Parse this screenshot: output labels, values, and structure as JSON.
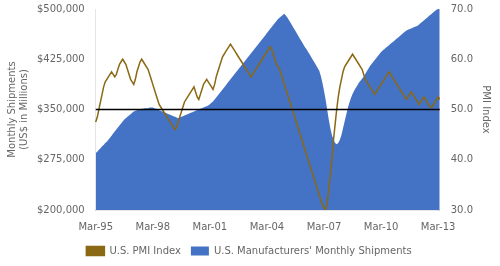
{
  "chart_data": {
    "type": "line",
    "y_label": "Monthly Shipments\n(US$ in Millions)",
    "y2_label": "PMI Index",
    "ylim": [
      200000,
      500000
    ],
    "yticks": [
      {
        "value": 200000,
        "label": "$200,000"
      },
      {
        "value": 275000,
        "label": "$275,000"
      },
      {
        "value": 350000,
        "label": "$350,000"
      },
      {
        "value": 425000,
        "label": "$425,000"
      },
      {
        "value": 500000,
        "label": "$500,000"
      }
    ],
    "y2lim": [
      30.0,
      70.0
    ],
    "y2ticks": [
      {
        "value": 30,
        "label": "30.0"
      },
      {
        "value": 40,
        "label": "40.0"
      },
      {
        "value": 50,
        "label": "50.0"
      },
      {
        "value": 60,
        "label": "60.0"
      },
      {
        "value": 70,
        "label": "70.0"
      }
    ],
    "grid": false,
    "legend": "bottom",
    "reference_lines": [
      {
        "value": 350000,
        "color": "#000000"
      }
    ],
    "categories": [
      "Mar-95",
      null,
      null,
      null,
      null,
      null,
      null,
      null,
      null,
      null,
      null,
      null,
      null,
      null,
      null,
      null,
      null,
      null,
      null,
      null,
      null,
      null,
      null,
      null,
      null,
      null,
      null,
      null,
      null,
      null,
      null,
      null,
      null,
      null,
      null,
      null,
      "Mar-98",
      null,
      null,
      null,
      null,
      null,
      null,
      null,
      null,
      null,
      null,
      null,
      null,
      null,
      null,
      null,
      null,
      null,
      null,
      null,
      null,
      null,
      null,
      null,
      null,
      null,
      null,
      null,
      null,
      null,
      null,
      null,
      null,
      null,
      null,
      null,
      "Mar-01",
      null,
      null,
      null,
      null,
      null,
      null,
      null,
      null,
      null,
      null,
      null,
      null,
      null,
      null,
      null,
      null,
      null,
      null,
      null,
      null,
      null,
      null,
      null,
      null,
      null,
      null,
      null,
      null,
      null,
      null,
      null,
      null,
      null,
      null,
      null,
      "Mar-04",
      null,
      null,
      null,
      null,
      null,
      null,
      null,
      null,
      null,
      null,
      null,
      null,
      null,
      null,
      null,
      null,
      null,
      null,
      null,
      null,
      null,
      null,
      null,
      null,
      null,
      null,
      null,
      null,
      null,
      null,
      null,
      null,
      null,
      null,
      null,
      "Mar-07",
      null,
      null,
      null,
      null,
      null,
      null,
      null,
      null,
      null,
      null,
      null,
      null,
      null,
      null,
      null,
      null,
      null,
      null,
      null,
      null,
      null,
      null,
      null,
      null,
      null,
      null,
      null,
      null,
      null,
      null,
      null,
      null,
      null,
      null,
      null,
      "Mar-10",
      null,
      null,
      null,
      null,
      null,
      null,
      null,
      null,
      null,
      null,
      null,
      null,
      null,
      null,
      null,
      null,
      null,
      null,
      null,
      null,
      null,
      null,
      null,
      null,
      null,
      null,
      null,
      null,
      null,
      null,
      null,
      null,
      null,
      null,
      null,
      "Mar-13",
      null
    ],
    "series": [
      {
        "name": "U.S. Manufacturers' Monthly Shipments",
        "type": "area",
        "color": "#4472C4",
        "values": [
          285000,
          287000,
          290000,
          292000,
          295000,
          297000,
          300000,
          302000,
          305000,
          308000,
          311000,
          314000,
          317000,
          320000,
          323000,
          326000,
          329000,
          332000,
          335000,
          337000,
          339000,
          341000,
          343000,
          345000,
          347000,
          348000,
          349000,
          350000,
          350000,
          351000,
          351000,
          352000,
          352000,
          352000,
          353000,
          353000,
          353000,
          352000,
          351000,
          350000,
          349000,
          348000,
          347000,
          346000,
          345000,
          344000,
          343000,
          342000,
          341000,
          340000,
          339000,
          338000,
          337000,
          338000,
          339000,
          340000,
          341000,
          342000,
          343000,
          344000,
          345000,
          346000,
          347000,
          348000,
          349000,
          350000,
          351000,
          352000,
          353000,
          354000,
          355000,
          356000,
          358000,
          360000,
          362000,
          365000,
          368000,
          371000,
          374000,
          377000,
          380000,
          383000,
          386000,
          389000,
          392000,
          395000,
          398000,
          401000,
          404000,
          407000,
          410000,
          413000,
          416000,
          419000,
          422000,
          425000,
          428000,
          431000,
          434000,
          437000,
          440000,
          443000,
          446000,
          449000,
          452000,
          455000,
          458000,
          461000,
          464000,
          467000,
          470000,
          473000,
          476000,
          479000,
          482000,
          485000,
          487000,
          489000,
          491000,
          493000,
          490000,
          487000,
          483000,
          479000,
          475000,
          471000,
          467000,
          463000,
          459000,
          455000,
          451000,
          447000,
          443000,
          440000,
          436000,
          432000,
          428000,
          424000,
          420000,
          416000,
          412000,
          408000,
          400000,
          390000,
          378000,
          365000,
          350000,
          335000,
          322000,
          312000,
          305000,
          300000,
          298000,
          300000,
          305000,
          312000,
          322000,
          332000,
          342000,
          352000,
          360000,
          367000,
          373000,
          378000,
          382000,
          386000,
          390000,
          393000,
          396000,
          399000,
          403000,
          407000,
          411000,
          415000,
          418000,
          421000,
          424000,
          427000,
          430000,
          433000,
          436000,
          438000,
          440000,
          442000,
          444000,
          446000,
          448000,
          450000,
          452000,
          454000,
          456000,
          458000,
          460000,
          462000,
          464000,
          466000,
          468000,
          469000,
          470000,
          471000,
          472000,
          473000,
          474000,
          475000,
          477000,
          479000,
          481000,
          483000,
          485000,
          487000,
          489000,
          491000,
          493000,
          495000,
          497000,
          499000,
          500000,
          500000
        ]
      },
      {
        "name": "U.S. PMI Index",
        "type": "line",
        "color": "#8B6914",
        "axis": "y2",
        "values": [
          47.5,
          48.5,
          50.0,
          51.5,
          53.0,
          54.5,
          55.5,
          56.0,
          56.5,
          57.0,
          57.5,
          57.0,
          56.5,
          57.0,
          58.0,
          59.0,
          59.5,
          60.0,
          59.5,
          59.0,
          58.0,
          57.0,
          56.0,
          55.5,
          55.0,
          56.0,
          57.5,
          58.5,
          59.5,
          60.0,
          59.5,
          59.0,
          58.5,
          58.0,
          57.0,
          56.0,
          55.0,
          54.0,
          53.0,
          52.0,
          51.0,
          50.5,
          50.0,
          49.5,
          49.0,
          48.5,
          48.0,
          47.5,
          47.0,
          46.5,
          46.0,
          46.5,
          47.5,
          48.5,
          49.5,
          50.5,
          51.5,
          52.0,
          52.5,
          53.0,
          53.5,
          54.0,
          54.5,
          53.5,
          52.5,
          52.0,
          53.0,
          54.0,
          55.0,
          55.5,
          56.0,
          55.5,
          55.0,
          54.5,
          54.0,
          55.0,
          56.5,
          57.5,
          58.5,
          59.5,
          60.5,
          61.0,
          61.5,
          62.0,
          62.5,
          63.0,
          62.5,
          62.0,
          61.5,
          61.0,
          60.5,
          60.0,
          59.5,
          59.0,
          58.5,
          58.0,
          57.5,
          57.0,
          56.5,
          57.0,
          57.5,
          58.0,
          58.5,
          59.0,
          59.5,
          60.0,
          60.5,
          61.0,
          61.5,
          62.0,
          62.5,
          62.0,
          61.0,
          60.0,
          59.0,
          58.5,
          58.0,
          57.0,
          56.0,
          55.0,
          54.0,
          53.0,
          52.0,
          51.0,
          50.0,
          49.0,
          48.0,
          47.0,
          46.0,
          45.0,
          44.0,
          43.0,
          42.0,
          41.0,
          40.0,
          39.0,
          38.0,
          37.0,
          36.0,
          35.0,
          34.0,
          33.0,
          32.0,
          31.0,
          30.5,
          30.0,
          31.5,
          34.0,
          37.0,
          40.0,
          44.0,
          47.0,
          50.0,
          52.5,
          54.5,
          56.0,
          57.5,
          58.5,
          59.0,
          59.5,
          60.0,
          60.5,
          61.0,
          60.5,
          60.0,
          59.5,
          59.0,
          58.5,
          58.0,
          57.0,
          56.0,
          55.5,
          55.0,
          54.5,
          54.0,
          53.5,
          53.0,
          53.5,
          54.0,
          54.5,
          55.0,
          55.5,
          56.0,
          56.5,
          57.0,
          57.5,
          57.0,
          56.5,
          56.0,
          55.5,
          55.0,
          54.5,
          54.0,
          53.5,
          53.0,
          52.5,
          52.0,
          52.5,
          53.0,
          53.5,
          53.0,
          52.5,
          52.0,
          51.5,
          51.0,
          51.5,
          52.0,
          52.5,
          52.0,
          51.5,
          51.0,
          50.5,
          50.5,
          51.0,
          51.5,
          52.0,
          52.5,
          52.0
        ]
      }
    ]
  }
}
